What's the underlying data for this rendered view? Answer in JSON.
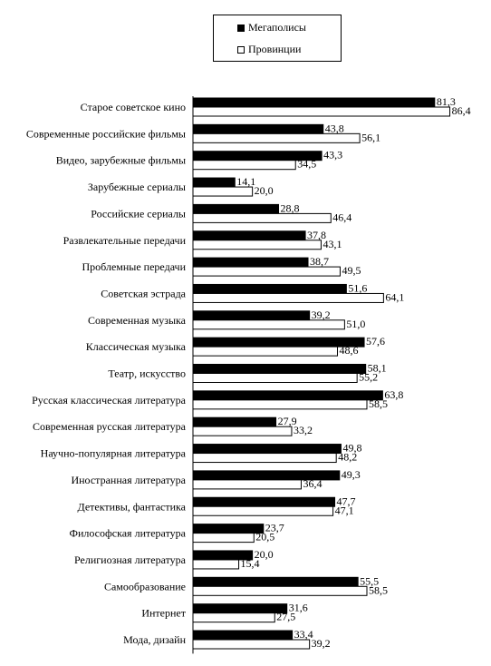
{
  "chart_data": {
    "type": "bar",
    "orientation": "horizontal",
    "title": "",
    "xlabel": "",
    "ylabel": "",
    "xlim": [
      0,
      90
    ],
    "grid": false,
    "legend_position": "top",
    "categories": [
      "Старое советское кино",
      "Современные российские фильмы",
      "Видео, зарубежные фильмы",
      "Зарубежные сериалы",
      "Российские сериалы",
      "Развлекательные передачи",
      "Проблемные передачи",
      "Советская эстрада",
      "Современная музыка",
      "Классическая музыка",
      "Театр, искусство",
      "Русская классическая литература",
      "Современная русская литература",
      "Научно-популярная литература",
      "Иностранная литература",
      "Детективы, фантастика",
      "Философская литература",
      "Религиозная литература",
      "Самообразование",
      "Интернет",
      "Мода, дизайн"
    ],
    "series": [
      {
        "name": "Мегаполисы",
        "color": "#000000",
        "values": [
          81.3,
          43.8,
          43.3,
          14.1,
          28.8,
          37.8,
          38.7,
          51.6,
          39.2,
          57.6,
          58.1,
          63.8,
          27.9,
          49.8,
          49.3,
          47.7,
          23.7,
          20.0,
          55.5,
          31.6,
          33.4
        ],
        "labels": [
          "81,3",
          "43,8",
          "43,3",
          "14,1",
          "28,8",
          "37,8",
          "38,7",
          "51,6",
          "39,2",
          "57,6",
          "58,1",
          "63,8",
          "27,9",
          "49,8",
          "49,3",
          "47,7",
          "23,7",
          "20,0",
          "55,5",
          "31,6",
          "33,4"
        ]
      },
      {
        "name": "Провинции",
        "color": "#ffffff",
        "values": [
          86.4,
          56.1,
          34.5,
          20.0,
          46.4,
          43.1,
          49.5,
          64.1,
          51.0,
          48.6,
          55.2,
          58.5,
          33.2,
          48.2,
          36.4,
          47.1,
          20.5,
          15.4,
          58.5,
          27.5,
          39.2
        ],
        "labels": [
          "86,4",
          "56,1",
          "34,5",
          "20,0",
          "46,4",
          "43,1",
          "49,5",
          "64,1",
          "51,0",
          "48,6",
          "55,2",
          "58,5",
          "33,2",
          "48,2",
          "36,4",
          "47,1",
          "20,5",
          "15,4",
          "58,5",
          "27,5",
          "39,2"
        ]
      }
    ]
  }
}
